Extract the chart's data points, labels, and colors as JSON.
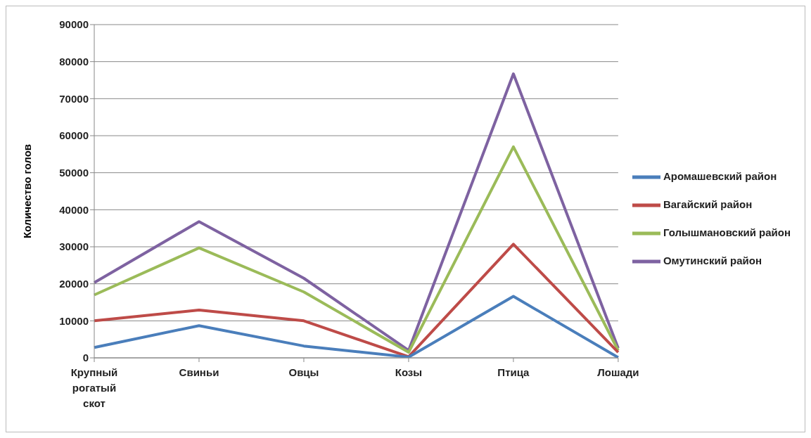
{
  "chart_data": {
    "type": "line",
    "ylabel": "Количество голов",
    "categories": [
      "Крупный рогатый скот",
      "Свиньи",
      "Овцы",
      "Козы",
      "Птица",
      "Лошади"
    ],
    "ylim": [
      0,
      90000
    ],
    "yticks": [
      0,
      10000,
      20000,
      30000,
      40000,
      50000,
      60000,
      70000,
      80000,
      90000
    ],
    "grid": "y",
    "legend": "right",
    "marker": "none",
    "line_style": "solid",
    "series": [
      {
        "name": "Омутинский район",
        "color": "#7e62a1",
        "values": [
          20300,
          36800,
          21500,
          2000,
          76700,
          2600
        ]
      },
      {
        "name": "Голышмановский район",
        "color": "#9bbb59",
        "values": [
          17000,
          29700,
          17800,
          1500,
          57000,
          2000
        ]
      },
      {
        "name": "Вагайский район",
        "color": "#be4b48",
        "values": [
          10000,
          12900,
          10000,
          300,
          30700,
          1500
        ]
      },
      {
        "name": "Аромашевский район",
        "color": "#4a7ebb",
        "values": [
          2800,
          8700,
          3200,
          200,
          16600,
          100
        ]
      }
    ]
  }
}
